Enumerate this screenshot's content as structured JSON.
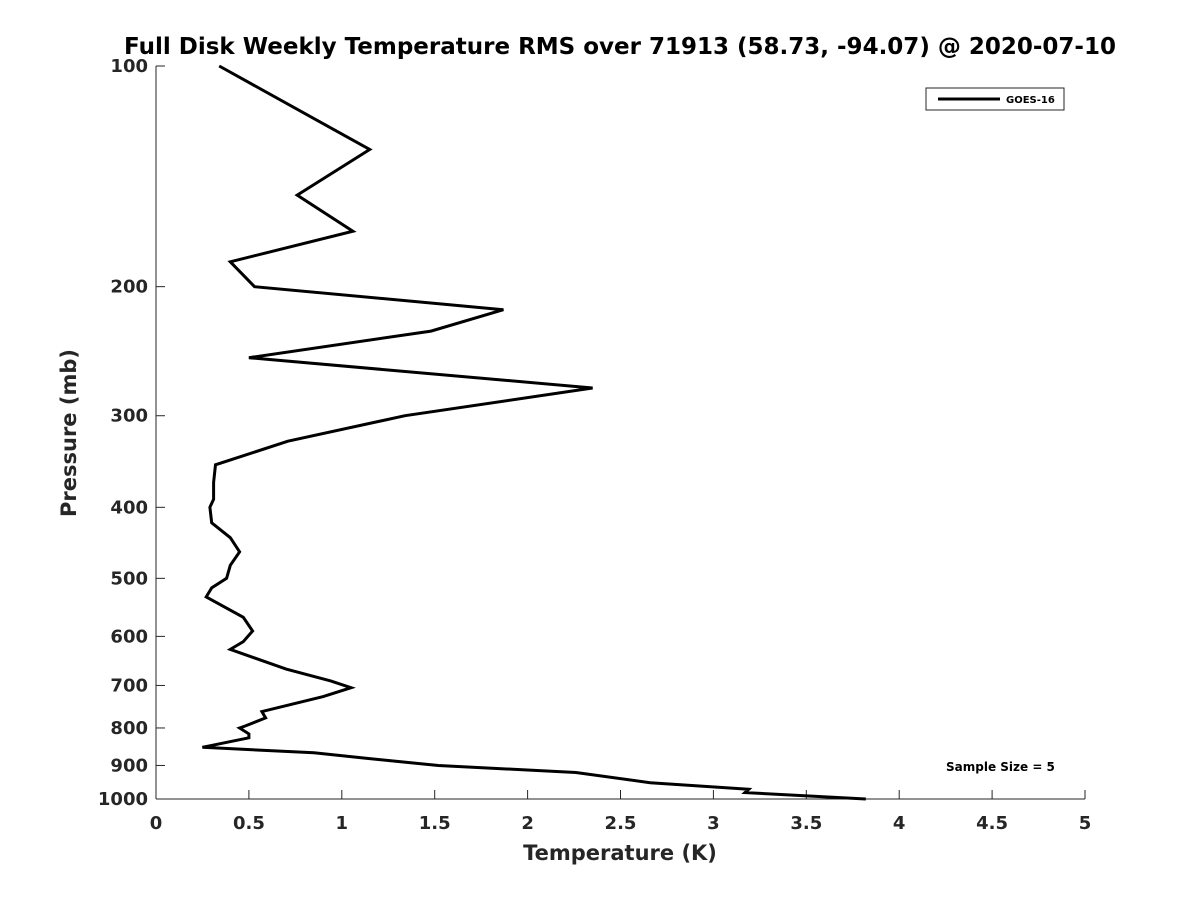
{
  "chart_data": {
    "type": "line",
    "title": "Full Disk Weekly Temperature RMS over 71913 (58.73, -94.07) @ 2020-07-10",
    "xlabel": "Temperature (K)",
    "ylabel": "Pressure (mb)",
    "xlim": [
      0,
      5
    ],
    "ylim": [
      100,
      1000
    ],
    "yscale": "log",
    "y_reversed": true,
    "grid": false,
    "legend_position": "top-right",
    "x_ticks": [
      "0",
      "0.5",
      "1",
      "1.5",
      "2",
      "2.5",
      "3",
      "3.5",
      "4",
      "4.5",
      "5"
    ],
    "y_ticks": [
      "100",
      "200",
      "300",
      "400",
      "500",
      "600",
      "700",
      "800",
      "900",
      "1000"
    ],
    "series": [
      {
        "name": "GOES-16",
        "color": "#000000",
        "points": [
          [
            0.34,
            100
          ],
          [
            1.15,
            130
          ],
          [
            0.76,
            150
          ],
          [
            1.06,
            168
          ],
          [
            0.4,
            185
          ],
          [
            0.53,
            200
          ],
          [
            1.87,
            215
          ],
          [
            1.48,
            230
          ],
          [
            0.5,
            250
          ],
          [
            2.35,
            275
          ],
          [
            1.34,
            300
          ],
          [
            0.71,
            325
          ],
          [
            0.32,
            350
          ],
          [
            0.31,
            370
          ],
          [
            0.31,
            380
          ],
          [
            0.31,
            390
          ],
          [
            0.29,
            400
          ],
          [
            0.3,
            420
          ],
          [
            0.4,
            440
          ],
          [
            0.45,
            460
          ],
          [
            0.4,
            480
          ],
          [
            0.38,
            500
          ],
          [
            0.3,
            515
          ],
          [
            0.27,
            530
          ],
          [
            0.47,
            565
          ],
          [
            0.52,
            590
          ],
          [
            0.47,
            610
          ],
          [
            0.4,
            625
          ],
          [
            0.7,
            665
          ],
          [
            0.94,
            690
          ],
          [
            1.05,
            705
          ],
          [
            0.9,
            725
          ],
          [
            0.57,
            760
          ],
          [
            0.59,
            775
          ],
          [
            0.48,
            795
          ],
          [
            0.45,
            800
          ],
          [
            0.5,
            815
          ],
          [
            0.5,
            825
          ],
          [
            0.25,
            850
          ],
          [
            0.85,
            865
          ],
          [
            1.13,
            880
          ],
          [
            1.52,
            900
          ],
          [
            2.26,
            920
          ],
          [
            2.66,
            950
          ],
          [
            3.19,
            970
          ],
          [
            3.17,
            980
          ],
          [
            3.82,
            1000
          ]
        ]
      }
    ],
    "annotation": "Sample Size = 5"
  }
}
